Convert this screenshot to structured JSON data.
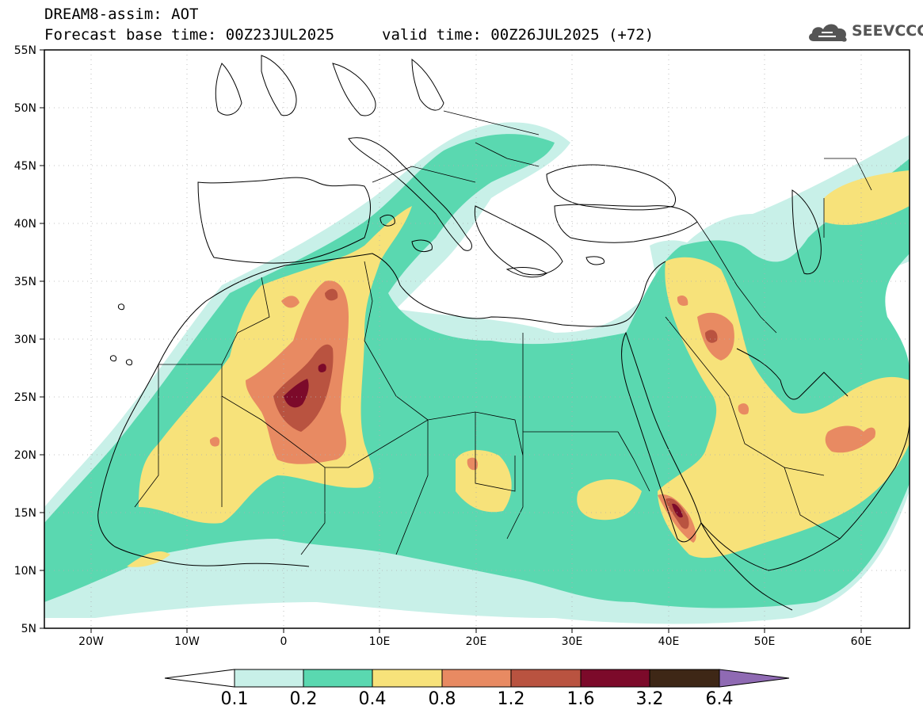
{
  "title": {
    "model_line": "DREAM8-assim: AOT",
    "base_time": "Forecast base time: 00Z23JUL2025",
    "valid_time": "valid time: 00Z26JUL2025 (+72)"
  },
  "logo": {
    "text": "SEEVCCC",
    "icon": "cloud-icon"
  },
  "map": {
    "lat_labels": [
      "55N",
      "50N",
      "45N",
      "40N",
      "35N",
      "30N",
      "25N",
      "20N",
      "15N",
      "10N",
      "5N"
    ],
    "lon_labels": [
      "20W",
      "10W",
      "0",
      "10E",
      "20E",
      "30E",
      "40E",
      "50E",
      "60E"
    ]
  },
  "colorbar": {
    "labels": [
      "0.1",
      "0.2",
      "0.4",
      "0.8",
      "1.2",
      "1.6",
      "3.2",
      "6.4"
    ],
    "colors": {
      "below": "#ffffff",
      "c1": "#c8f0e8",
      "c2": "#5ad8b0",
      "c3": "#f7e27a",
      "c4": "#e88a62",
      "c5": "#b95340",
      "c6": "#7c0a2a",
      "c7": "#3e2716",
      "above": "#8f6ab3"
    }
  },
  "chart_data": {
    "type": "heatmap",
    "title": "DREAM8-assim: AOT",
    "variable": "Aerosol Optical Thickness",
    "x_range": [
      -25,
      65
    ],
    "y_range": [
      5,
      55
    ],
    "levels": [
      0.1,
      0.2,
      0.4,
      0.8,
      1.2,
      1.6,
      3.2,
      6.4
    ],
    "notable_maxima": [
      {
        "region": "Algeria/Mali Sahara",
        "value_range": "1.6-3.2"
      },
      {
        "region": "Iraq",
        "value_range": "1.2-1.6"
      },
      {
        "region": "Eritrea/Red Sea coast",
        "value_range": "1.6-3.2"
      },
      {
        "region": "Oman",
        "value_range": "0.8-1.2"
      }
    ]
  }
}
